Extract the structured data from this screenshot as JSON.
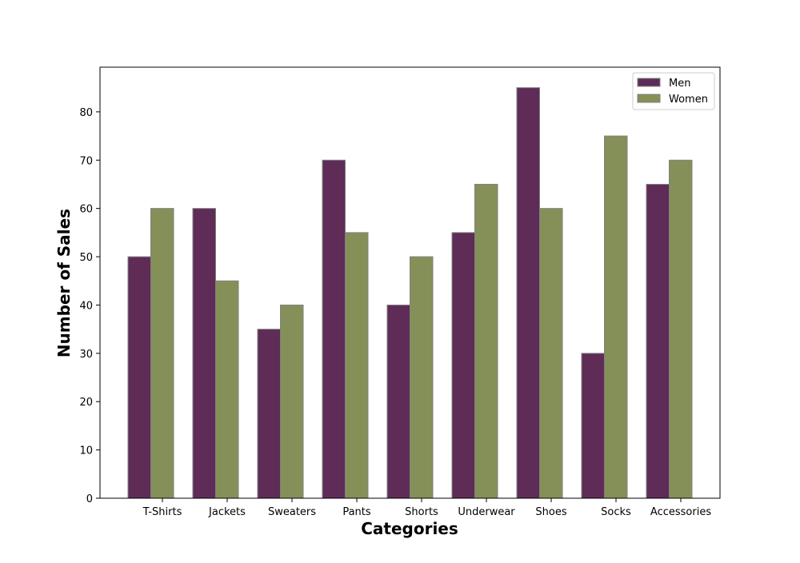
{
  "chart_data": {
    "type": "bar",
    "title": "",
    "xlabel": "Categories",
    "ylabel": "Number of Sales",
    "categories": [
      "T-Shirts",
      "Jackets",
      "Sweaters",
      "Pants",
      "Shorts",
      "Underwear",
      "Shoes",
      "Socks",
      "Accessories"
    ],
    "series": [
      {
        "name": "Men",
        "color": "#5e2c57",
        "values": [
          50,
          60,
          35,
          70,
          40,
          55,
          85,
          30,
          65
        ]
      },
      {
        "name": "Women",
        "color": "#859058",
        "values": [
          60,
          45,
          40,
          55,
          50,
          65,
          60,
          75,
          70
        ]
      }
    ],
    "ylim": [
      0,
      89.25
    ],
    "yticks": [
      0,
      10,
      20,
      30,
      40,
      50,
      60,
      70,
      80
    ],
    "legend_position": "top-right",
    "grid": false,
    "bar_edge_color": "#808080"
  }
}
